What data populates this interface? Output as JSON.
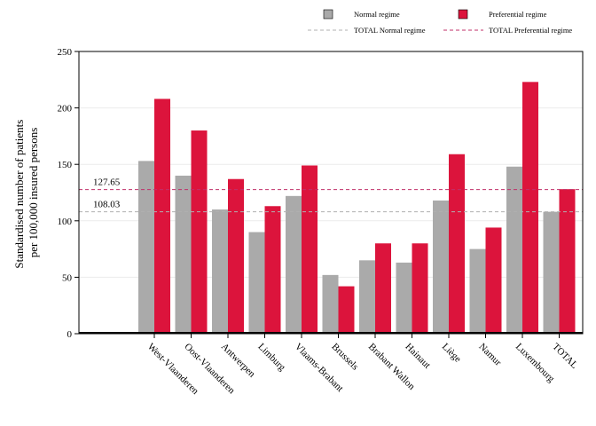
{
  "chart_data": {
    "type": "bar",
    "categories": [
      "West-Vlaanderen",
      "Oost-Vlaanderen",
      "Antwerpen",
      "Limburg",
      "Vlaams-Brabant",
      "Brussels",
      "Brabant Wallon",
      "Hainaut",
      "Liège",
      "Namur",
      "Luxembourg",
      "TOTAL"
    ],
    "series": [
      {
        "name": "Normal regime",
        "color": "#aaaaaa",
        "values": [
          153,
          140,
          110,
          90,
          122,
          52,
          65,
          63,
          118,
          75,
          148,
          108
        ]
      },
      {
        "name": "Preferential regime",
        "color": "#dc143c",
        "values": [
          208,
          180,
          137,
          113,
          149,
          42,
          80,
          80,
          159,
          94,
          223,
          128
        ]
      }
    ],
    "reference_lines": [
      {
        "name": "TOTAL Normal regime",
        "value": 108.03,
        "label": "108.03",
        "color": "#b0b0b0"
      },
      {
        "name": "TOTAL Preferential regime",
        "value": 127.65,
        "label": "127.65",
        "color": "#c0306a"
      }
    ],
    "ylabel_lines": [
      "Standardised number of patients",
      "per 100,000 insured persons"
    ],
    "ylim": [
      0,
      250
    ],
    "yticks": [
      0,
      50,
      100,
      150,
      200,
      250
    ],
    "grid": true,
    "legend_position": "top-right"
  }
}
